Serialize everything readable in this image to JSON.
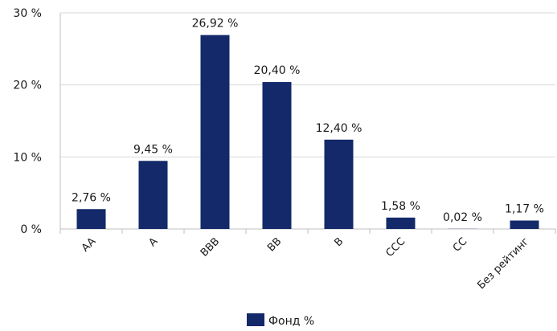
{
  "chart_data": {
    "type": "bar",
    "categories": [
      "AA",
      "A",
      "BBB",
      "BB",
      "B",
      "CCC",
      "CC",
      "Без рейтинг"
    ],
    "series": [
      {
        "name": "Фонд %",
        "values": [
          2.76,
          9.45,
          26.92,
          20.4,
          12.4,
          1.58,
          0.02,
          1.17
        ],
        "data_labels": [
          "2,76 %",
          "9,45 %",
          "26,92 %",
          "20,40 %",
          "12,40 %",
          "1,58 %",
          "0,02 %",
          "1,17 %"
        ]
      }
    ],
    "y_ticks": [
      0,
      10,
      20,
      30
    ],
    "y_tick_labels": [
      "0 %",
      "10 %",
      "20 %",
      "30 %"
    ],
    "ylim": [
      0,
      30
    ],
    "grid": true,
    "legend_position": "bottom-center",
    "colors": {
      "bar": "#13296a",
      "grid": "#d9d9d9",
      "axis": "#bfbfbf",
      "text": "#1a1a1a"
    }
  }
}
